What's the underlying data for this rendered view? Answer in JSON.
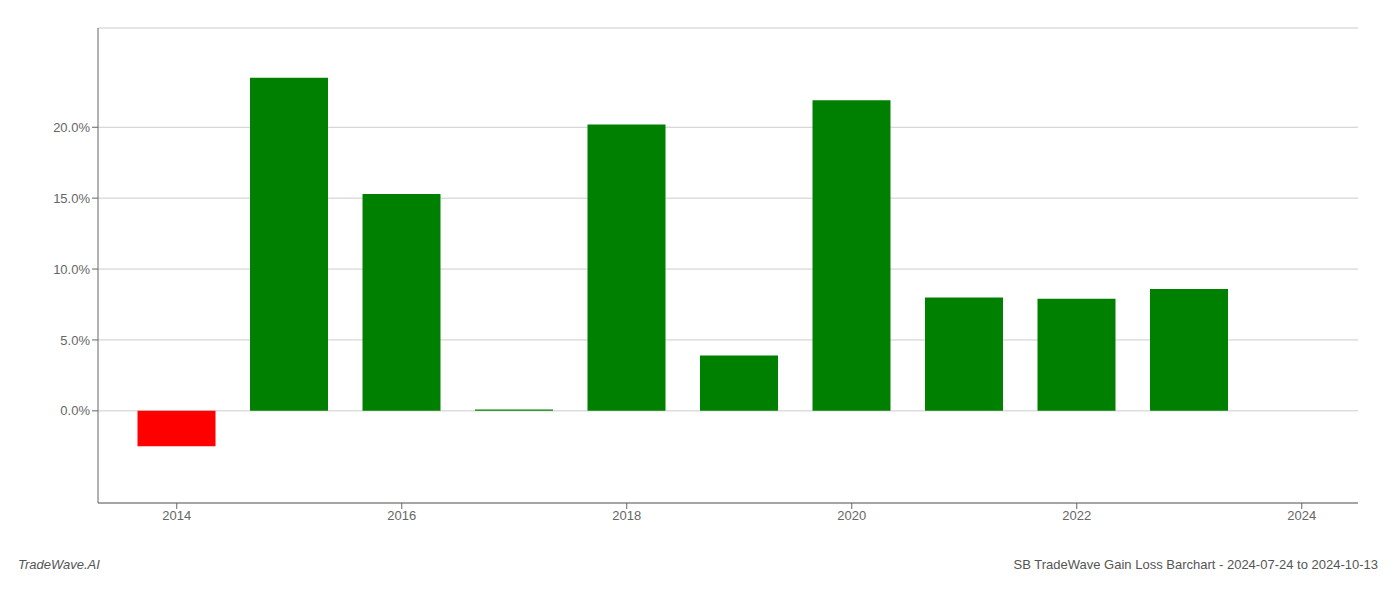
{
  "chart_data": {
    "type": "bar",
    "x": [
      2014,
      2015,
      2016,
      2017,
      2018,
      2019,
      2020,
      2021,
      2022,
      2023
    ],
    "values": [
      -0.025,
      0.235,
      0.153,
      0.001,
      0.202,
      0.039,
      0.219,
      0.08,
      0.079,
      0.086
    ],
    "colors": [
      "#ff0000",
      "#008000",
      "#008000",
      "#008000",
      "#008000",
      "#008000",
      "#008000",
      "#008000",
      "#008000",
      "#008000"
    ],
    "xlim": [
      2013.3,
      2024.5
    ],
    "xticks": [
      2014,
      2016,
      2018,
      2020,
      2022,
      2024
    ],
    "ylim": [
      -0.065,
      0.27
    ],
    "yticks": [
      {
        "value": 0.0,
        "label": "0.0%"
      },
      {
        "value": 0.05,
        "label": "5.0%"
      },
      {
        "value": 0.1,
        "label": "10.0%"
      },
      {
        "value": 0.15,
        "label": "15.0%"
      },
      {
        "value": 0.2,
        "label": "20.0%"
      }
    ],
    "grid": true,
    "annotations": [
      "TradeWave.AI",
      "SB TradeWave Gain Loss Barchart - 2024-07-24 to 2024-10-13"
    ]
  }
}
